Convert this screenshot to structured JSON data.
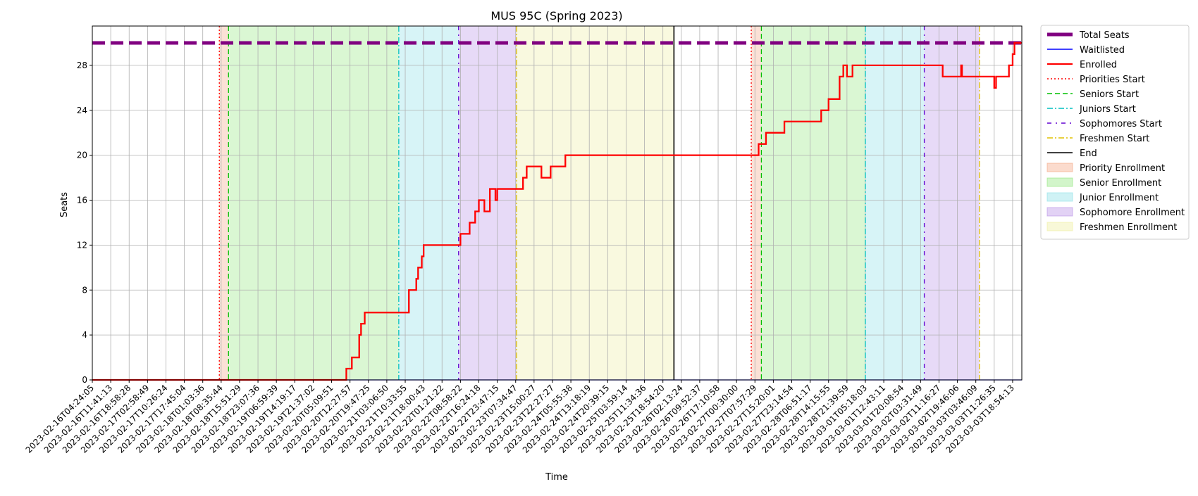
{
  "chart_data": {
    "type": "line",
    "title": "MUS 95C (Spring 2023)",
    "xlabel": "Time",
    "ylabel": "Seats",
    "ylim": [
      0,
      31.5
    ],
    "yticks": [
      0,
      4,
      8,
      12,
      16,
      20,
      24,
      28
    ],
    "grid": true,
    "legend_placement": "outside-right-top",
    "x_tick_labels": [
      "2023-02-16T04:24:05",
      "2023-02-16T11:41:13",
      "2023-02-16T18:58:28",
      "2023-02-17T02:58:49",
      "2023-02-17T10:26:24",
      "2023-02-17T17:45:04",
      "2023-02-18T01:03:36",
      "2023-02-18T08:35:44",
      "2023-02-18T15:51:29",
      "2023-02-18T23:07:36",
      "2023-02-19T06:59:39",
      "2023-02-19T14:19:17",
      "2023-02-19T21:37:02",
      "2023-02-20T05:09:51",
      "2023-02-20T12:27:57",
      "2023-02-20T19:47:25",
      "2023-02-21T03:06:50",
      "2023-02-21T10:33:55",
      "2023-02-21T18:00:43",
      "2023-02-22T01:21:22",
      "2023-02-22T08:58:22",
      "2023-02-22T16:24:18",
      "2023-02-22T23:47:15",
      "2023-02-23T07:34:47",
      "2023-02-23T15:00:27",
      "2023-02-23T22:27:27",
      "2023-02-24T05:55:38",
      "2023-02-24T13:18:19",
      "2023-02-24T20:39:15",
      "2023-02-25T03:59:14",
      "2023-02-25T11:34:36",
      "2023-02-25T18:54:20",
      "2023-02-26T02:13:24",
      "2023-02-26T09:52:37",
      "2023-02-26T17:10:58",
      "2023-02-27T00:30:00",
      "2023-02-27T07:57:29",
      "2023-02-27T15:20:01",
      "2023-02-27T23:14:54",
      "2023-02-28T06:51:17",
      "2023-02-28T14:15:55",
      "2023-02-28T21:39:59",
      "2023-03-01T05:18:03",
      "2023-03-01T12:43:11",
      "2023-03-01T20:08:54",
      "2023-03-02T03:31:49",
      "2023-03-02T11:16:27",
      "2023-03-02T19:46:06",
      "2023-03-03T03:46:09",
      "2023-03-03T11:26:35",
      "2023-03-03T18:54:13"
    ],
    "x_domain": [
      0,
      50.5
    ],
    "series": [
      {
        "name": "Total Seats",
        "color": "#800080",
        "style": "dashed-thick",
        "points": [
          [
            0,
            30
          ],
          [
            50.5,
            30
          ]
        ]
      },
      {
        "name": "Waitlisted",
        "color": "#0000ff",
        "style": "solid-thin",
        "points": [
          [
            0,
            0
          ],
          [
            50.5,
            0
          ]
        ]
      },
      {
        "name": "Enrolled",
        "color": "#ff0000",
        "style": "step",
        "points": [
          [
            0,
            0
          ],
          [
            13.8,
            0
          ],
          [
            13.8,
            1
          ],
          [
            14.1,
            1
          ],
          [
            14.1,
            2
          ],
          [
            14.5,
            2
          ],
          [
            14.5,
            4
          ],
          [
            14.6,
            4
          ],
          [
            14.6,
            5
          ],
          [
            14.8,
            5
          ],
          [
            14.8,
            6
          ],
          [
            17.2,
            6
          ],
          [
            17.2,
            8
          ],
          [
            17.6,
            8
          ],
          [
            17.6,
            9
          ],
          [
            17.7,
            9
          ],
          [
            17.7,
            10
          ],
          [
            17.9,
            10
          ],
          [
            17.9,
            11
          ],
          [
            18.0,
            11
          ],
          [
            18.0,
            12
          ],
          [
            20.0,
            12
          ],
          [
            20.0,
            13
          ],
          [
            20.5,
            13
          ],
          [
            20.5,
            14
          ],
          [
            20.8,
            14
          ],
          [
            20.8,
            15
          ],
          [
            21.0,
            15
          ],
          [
            21.0,
            16
          ],
          [
            21.3,
            16
          ],
          [
            21.3,
            15
          ],
          [
            21.6,
            15
          ],
          [
            21.6,
            17
          ],
          [
            21.9,
            17
          ],
          [
            21.9,
            16
          ],
          [
            22.0,
            16
          ],
          [
            22.0,
            17
          ],
          [
            23.4,
            17
          ],
          [
            23.4,
            18
          ],
          [
            23.6,
            18
          ],
          [
            23.6,
            19
          ],
          [
            24.4,
            19
          ],
          [
            24.4,
            18
          ],
          [
            24.9,
            18
          ],
          [
            24.9,
            19
          ],
          [
            25.7,
            19
          ],
          [
            25.7,
            20
          ],
          [
            36.2,
            20
          ],
          [
            36.2,
            21
          ],
          [
            36.6,
            21
          ],
          [
            36.6,
            22
          ],
          [
            37.6,
            22
          ],
          [
            37.6,
            23
          ],
          [
            39.6,
            23
          ],
          [
            39.6,
            24
          ],
          [
            40.0,
            24
          ],
          [
            40.0,
            25
          ],
          [
            40.6,
            25
          ],
          [
            40.6,
            27
          ],
          [
            40.8,
            27
          ],
          [
            40.8,
            28
          ],
          [
            41.0,
            28
          ],
          [
            41.0,
            27
          ],
          [
            41.3,
            27
          ],
          [
            41.3,
            28
          ],
          [
            46.2,
            28
          ],
          [
            46.2,
            27
          ],
          [
            47.2,
            27
          ],
          [
            47.2,
            28
          ],
          [
            47.25,
            28
          ],
          [
            47.25,
            27
          ],
          [
            49.0,
            27
          ],
          [
            49.0,
            26
          ],
          [
            49.1,
            26
          ],
          [
            49.1,
            27
          ],
          [
            49.8,
            27
          ],
          [
            49.8,
            28
          ],
          [
            50.0,
            28
          ],
          [
            50.0,
            29
          ],
          [
            50.1,
            29
          ],
          [
            50.1,
            30
          ],
          [
            50.5,
            30
          ]
        ]
      }
    ],
    "phases": [
      {
        "name": "Priority Enrollment",
        "color": "#f4a582",
        "bands": [
          [
            6.9,
            7.4
          ],
          [
            35.8,
            36.35
          ]
        ]
      },
      {
        "name": "Senior Enrollment",
        "color": "#8fe67a",
        "bands": [
          [
            7.4,
            16.65
          ],
          [
            36.35,
            42.0
          ]
        ]
      },
      {
        "name": "Junior Enrollment",
        "color": "#87dfe6",
        "bands": [
          [
            16.65,
            19.9
          ],
          [
            42.0,
            45.2
          ]
        ]
      },
      {
        "name": "Sophomore Enrollment",
        "color": "#b78fe6",
        "bands": [
          [
            19.9,
            23.05
          ],
          [
            45.2,
            48.2
          ]
        ]
      },
      {
        "name": "Freshmen Enrollment",
        "color": "#eeee9e",
        "bands": [
          [
            23.05,
            31.6
          ]
        ]
      }
    ],
    "markers": [
      {
        "name": "Priorities Start",
        "color": "#ff0000",
        "style": "dotted",
        "x": [
          6.9,
          35.8
        ]
      },
      {
        "name": "Seniors Start",
        "color": "#00c000",
        "style": "dashed",
        "x": [
          7.4,
          36.35
        ]
      },
      {
        "name": "Juniors Start",
        "color": "#00bfbf",
        "style": "dashdot",
        "x": [
          16.65,
          42.0
        ]
      },
      {
        "name": "Sophomores Start",
        "color": "#6000d0",
        "style": "loosely-dashdot",
        "x": [
          19.9,
          45.2
        ]
      },
      {
        "name": "Freshmen Start",
        "color": "#e0c000",
        "style": "dashdot",
        "x": [
          23.05,
          48.2
        ]
      },
      {
        "name": "End",
        "color": "#000000",
        "style": "solid",
        "x": [
          31.6
        ]
      }
    ],
    "legend": [
      "Total Seats",
      "Waitlisted",
      "Enrolled",
      "Priorities Start",
      "Seniors Start",
      "Juniors Start",
      "Sophomores Start",
      "Freshmen Start",
      "End",
      "Priority Enrollment",
      "Senior Enrollment",
      "Junior Enrollment",
      "Sophomore Enrollment",
      "Freshmen Enrollment"
    ]
  }
}
